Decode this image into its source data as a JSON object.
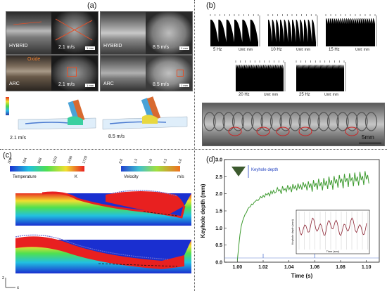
{
  "panels": {
    "a": {
      "label": "(a)",
      "photos": [
        {
          "process": "HYBRID",
          "speed": "2.1 m/s",
          "scale": "1 mm"
        },
        {
          "process": "HYBRID",
          "speed": "8.5 m/s",
          "scale": "1 mm"
        },
        {
          "process": "ARC",
          "speed": "2.1 m/s",
          "scale": "1 mm",
          "annotation": "Oxide"
        },
        {
          "process": "ARC",
          "speed": "8.5 m/s",
          "scale": "1 mm"
        }
      ],
      "sim_speeds": [
        "2.1 m/s",
        "8.5 m/s"
      ]
    },
    "b": {
      "label": "(b)",
      "frequencies": [
        "5 Hz",
        "10 Hz",
        "15 Hz",
        "20 Hz",
        "25 Hz"
      ],
      "unit": "Unit: mm",
      "scale_bar": "5mm"
    },
    "c": {
      "label": "(c)",
      "temperature_label": "Temperature",
      "temperature_unit": "K",
      "temperature_ticks": [
        "300",
        "584",
        "868",
        "1152",
        "1436",
        "1720"
      ],
      "velocity_label": "Velocity",
      "velocity_unit": "m/s",
      "velocity_ticks": [
        "0.0",
        "1.5",
        "3.0",
        "4.5",
        "6.0"
      ],
      "axis_z": "z",
      "axis_x": "x"
    },
    "d": {
      "label": "(d)",
      "legend_label": "Keyhole depth",
      "inset_xlabel": "Time (sec)",
      "inset_ylabel": "Keyhole depth (mm)"
    }
  },
  "chart_data": {
    "type": "line",
    "title": "",
    "xlabel": "Time (s)",
    "ylabel": "Keyhole depth (mm)",
    "xlim": [
      0.99,
      1.11
    ],
    "ylim": [
      0,
      3.0
    ],
    "xticks": [
      "1.00",
      "1.02",
      "1.04",
      "1.06",
      "1.08",
      "1.10"
    ],
    "yticks": [
      "0.0",
      "0.5",
      "1.0",
      "1.5",
      "2.0",
      "2.5",
      "3.0"
    ],
    "series": [
      {
        "color": "#3c9a2e",
        "x": [
          1.0,
          1.001,
          1.002,
          1.003,
          1.004,
          1.005,
          1.006,
          1.007,
          1.008,
          1.009,
          1.01,
          1.011,
          1.012,
          1.013,
          1.014,
          1.015,
          1.016,
          1.017,
          1.018,
          1.019,
          1.02,
          1.021,
          1.022,
          1.023,
          1.024,
          1.025,
          1.026,
          1.027,
          1.028,
          1.029,
          1.03,
          1.031,
          1.032,
          1.033,
          1.034,
          1.035,
          1.036,
          1.037,
          1.038,
          1.039,
          1.04,
          1.041,
          1.042,
          1.043,
          1.044,
          1.045,
          1.046,
          1.047,
          1.048,
          1.049,
          1.05,
          1.051,
          1.052,
          1.053,
          1.054,
          1.055,
          1.056,
          1.057,
          1.058,
          1.059,
          1.06,
          1.061,
          1.062,
          1.063,
          1.064,
          1.065,
          1.066,
          1.067,
          1.068,
          1.069,
          1.07,
          1.071,
          1.072,
          1.073,
          1.074,
          1.075,
          1.076,
          1.077,
          1.078,
          1.079,
          1.08,
          1.081,
          1.082,
          1.083,
          1.084,
          1.085,
          1.086,
          1.087,
          1.088,
          1.089,
          1.09,
          1.091,
          1.092,
          1.093,
          1.094,
          1.095,
          1.096,
          1.097,
          1.098,
          1.099,
          1.1,
          1.101,
          1.102
        ],
        "y": [
          0.05,
          0.45,
          0.8,
          1.05,
          1.2,
          1.3,
          1.4,
          1.45,
          1.55,
          1.6,
          1.62,
          1.7,
          1.68,
          1.75,
          1.78,
          1.82,
          1.8,
          1.85,
          1.92,
          1.88,
          1.95,
          1.9,
          2.0,
          1.96,
          2.02,
          1.94,
          2.08,
          2.0,
          2.1,
          2.02,
          2.05,
          2.18,
          2.08,
          2.12,
          2.0,
          2.22,
          2.1,
          2.15,
          2.06,
          2.25,
          2.12,
          2.2,
          2.05,
          2.28,
          2.15,
          2.24,
          2.1,
          2.3,
          2.16,
          2.26,
          2.12,
          2.34,
          2.2,
          2.28,
          2.1,
          2.36,
          2.18,
          2.3,
          2.06,
          2.4,
          2.2,
          2.32,
          2.12,
          2.44,
          2.22,
          2.34,
          2.1,
          2.46,
          2.24,
          2.38,
          2.14,
          2.5,
          2.26,
          2.4,
          2.12,
          2.52,
          2.3,
          2.42,
          2.18,
          2.55,
          2.32,
          2.44,
          2.16,
          2.58,
          2.34,
          2.46,
          2.2,
          2.6,
          2.38,
          2.48,
          2.22,
          2.62,
          2.36,
          2.5,
          2.24,
          2.64,
          2.4,
          2.52,
          2.26,
          2.66,
          2.42,
          2.55,
          2.3
        ]
      }
    ]
  }
}
